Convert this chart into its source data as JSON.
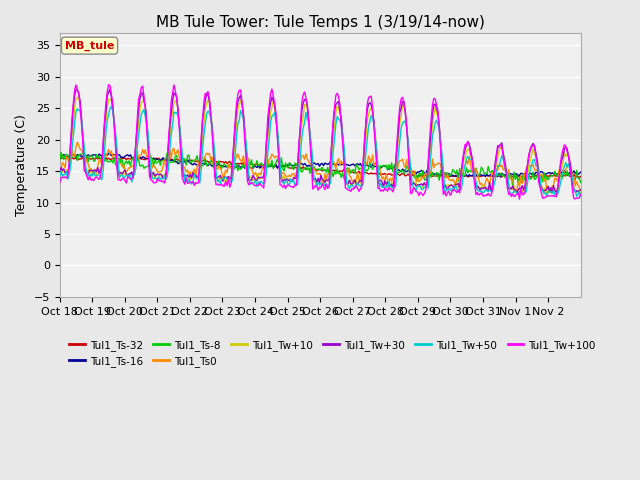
{
  "title": "MB Tule Tower: Tule Temps 1 (3/19/14-now)",
  "ylabel": "Temperature (C)",
  "ylim": [
    -5,
    37
  ],
  "yticks": [
    -5,
    0,
    5,
    10,
    15,
    20,
    25,
    30,
    35
  ],
  "x_labels": [
    "Oct 18",
    "Oct 19",
    "Oct 20",
    "Oct 21",
    "Oct 22",
    "Oct 23",
    "Oct 24",
    "Oct 25",
    "Oct 26",
    "Oct 27",
    "Oct 28",
    "Oct 29",
    "Oct 30",
    "Oct 31",
    "Nov 1",
    "Nov 2"
  ],
  "legend_box_label": "MB_tule",
  "series_names": [
    "Tul1_Ts-32",
    "Tul1_Ts-16",
    "Tul1_Ts-8",
    "Tul1_Ts0",
    "Tul1_Tw+10",
    "Tul1_Tw+30",
    "Tul1_Tw+50",
    "Tul1_Tw+100"
  ],
  "series_colors": [
    "#cc0000",
    "#000099",
    "#00cc00",
    "#ff8800",
    "#cccc00",
    "#9900cc",
    "#00cccc",
    "#ff00ff"
  ],
  "bg_color": "#e8e8e8",
  "plot_bg": "#f0f0f0",
  "grid_color": "#ffffff",
  "title_fontsize": 11,
  "axis_fontsize": 9,
  "tick_fontsize": 8
}
